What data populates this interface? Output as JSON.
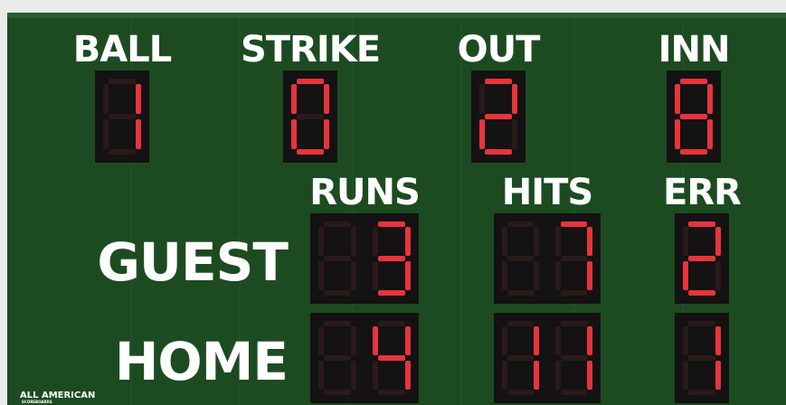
{
  "brand": {
    "name": "ALL AMERICAN",
    "sub": "SCOREBOARDS"
  },
  "top": [
    {
      "label": "BALL",
      "value": 1
    },
    {
      "label": "STRIKE",
      "value": 0
    },
    {
      "label": "OUT",
      "value": 2
    },
    {
      "label": "INN",
      "value": 8
    }
  ],
  "columns": [
    "RUNS",
    "HITS",
    "ERR"
  ],
  "teams": [
    {
      "name": "GUEST",
      "values": [
        3,
        7,
        2
      ]
    },
    {
      "name": "HOME",
      "values": [
        4,
        11,
        1
      ]
    }
  ]
}
